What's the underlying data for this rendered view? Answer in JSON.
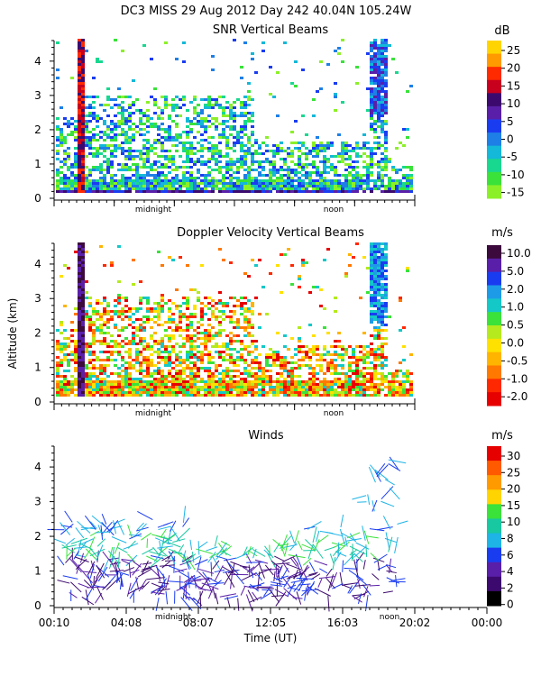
{
  "header": {
    "title": "DC3 MISS  29 Aug 2012 Day 242 40.04N 105.24W"
  },
  "chart_data": [
    {
      "type": "heatmap",
      "title": "SNR Vertical Beams",
      "ylim": [
        0,
        4.6
      ],
      "yticks": [
        0,
        1,
        2,
        3,
        4
      ],
      "xlim": [
        0,
        24
      ],
      "markers": [
        {
          "label": "midnight",
          "x": 6.6
        },
        {
          "label": "noon",
          "x": 18.6
        }
      ],
      "colorbar": {
        "unit": "dB",
        "labels": [
          "25",
          "20",
          "15",
          "10",
          "5",
          "0",
          "-5",
          "-10",
          "-15"
        ],
        "colors": [
          "#ffd400",
          "#ff9a00",
          "#ff2a00",
          "#c8001e",
          "#3c0a6e",
          "#5a1fa8",
          "#1a3cf0",
          "#1e7fe6",
          "#14b8d8",
          "#18d890",
          "#3ae23a",
          "#8cf028"
        ]
      }
    },
    {
      "type": "heatmap",
      "title": "Doppler Velocity Vertical Beams",
      "ylabel": "Altitude (km)",
      "ylim": [
        0,
        4.6
      ],
      "yticks": [
        0,
        1,
        2,
        3,
        4
      ],
      "xlim": [
        0,
        24
      ],
      "markers": [
        {
          "label": "midnight",
          "x": 6.6
        },
        {
          "label": "noon",
          "x": 18.6
        }
      ],
      "colorbar": {
        "unit": "m/s",
        "labels": [
          "10.0",
          "5.0",
          "2.0",
          "1.0",
          "0.5",
          "0.0",
          "-0.5",
          "-1.0",
          "-2.0"
        ],
        "colors": [
          "#3c0a3c",
          "#5a1fa8",
          "#1a3cf0",
          "#1e9be6",
          "#14c8c8",
          "#3ae23a",
          "#b4ea1e",
          "#ffe100",
          "#ffb400",
          "#ff7800",
          "#ff2800",
          "#e60000"
        ]
      }
    },
    {
      "type": "scatter",
      "title": "Winds",
      "xlabel": "Time (UT)",
      "ylim": [
        0,
        4.6
      ],
      "yticks": [
        0,
        1,
        2,
        3,
        4
      ],
      "xlim": [
        0,
        24
      ],
      "xticklabels": [
        "00:10",
        "04:08",
        "08:07",
        "12:05",
        "16:03",
        "20:02",
        "00:00"
      ],
      "markers": [
        {
          "label": "midnight",
          "x": 6.6
        },
        {
          "label": "noon",
          "x": 18.6
        }
      ],
      "colorbar": {
        "unit": "m/s",
        "labels": [
          "30",
          "25",
          "20",
          "15",
          "10",
          "8",
          "6",
          "4",
          "2",
          "0"
        ],
        "colors": [
          "#e60000",
          "#ff5a00",
          "#ff9a00",
          "#ffd400",
          "#3ae23a",
          "#18c8a0",
          "#1eb4e6",
          "#1a3cf0",
          "#5a1fa8",
          "#3c0a6e",
          "#000000"
        ]
      }
    }
  ]
}
